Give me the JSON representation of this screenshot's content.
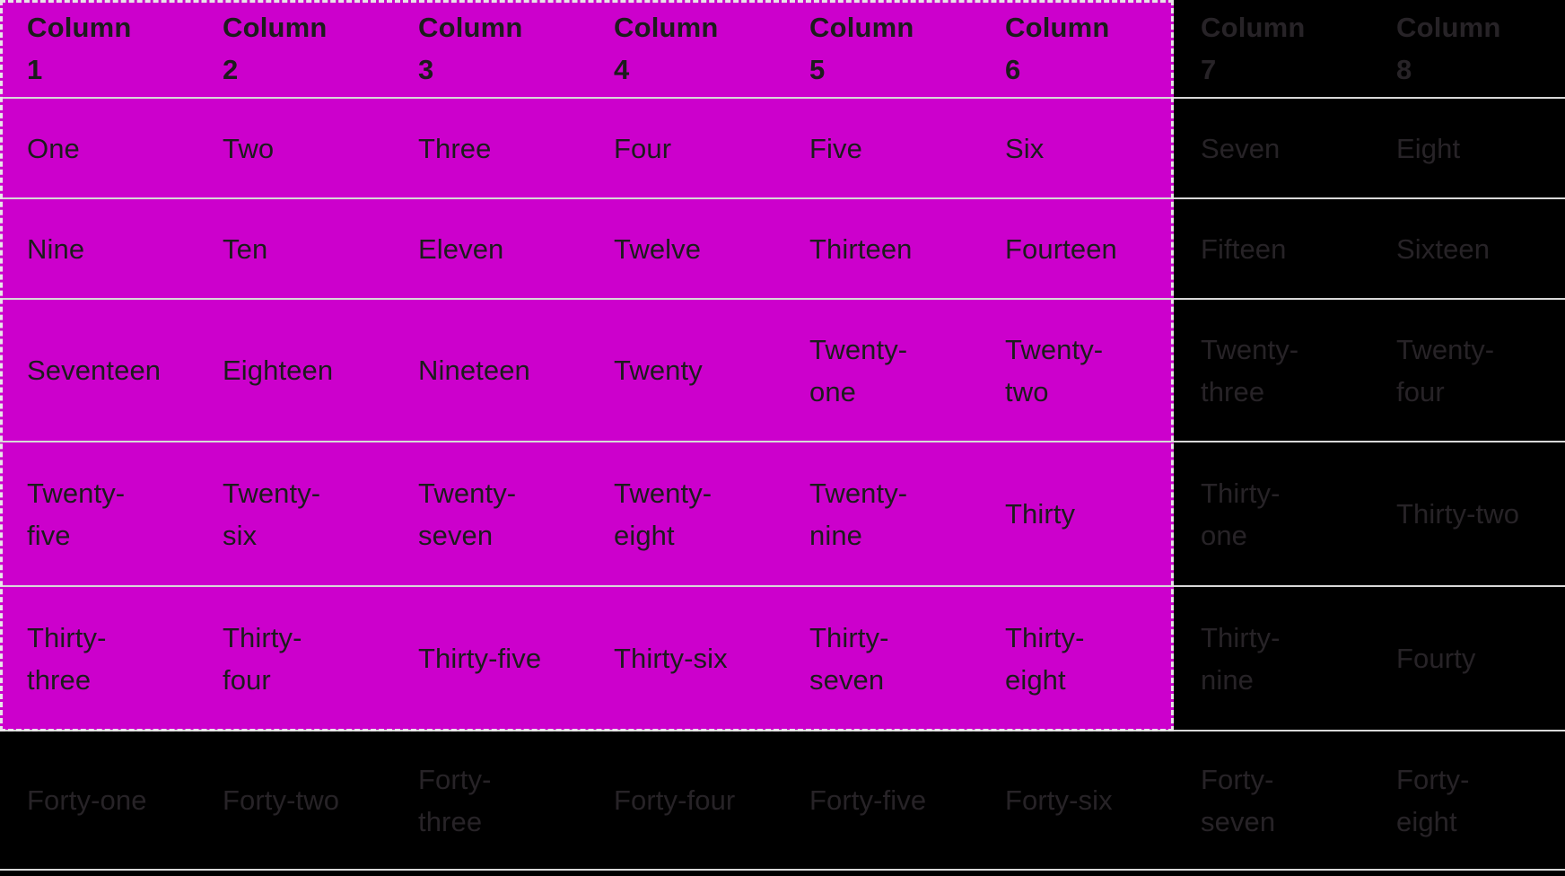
{
  "table": {
    "columns": [
      "Column 1",
      "Column 2",
      "Column 3",
      "Column 4",
      "Column 5",
      "Column 6",
      "Column 7",
      "Column 8"
    ],
    "rows": [
      [
        "One",
        "Two",
        "Three",
        "Four",
        "Five",
        "Six",
        "Seven",
        "Eight"
      ],
      [
        "Nine",
        "Ten",
        "Eleven",
        "Twelve",
        "Thirteen",
        "Fourteen",
        "Fifteen",
        "Sixteen"
      ],
      [
        "Seventeen",
        "Eighteen",
        "Nineteen",
        "Twenty",
        "Twenty-one",
        "Twenty-two",
        "Twenty-three",
        "Twenty-four"
      ],
      [
        "Twenty-five",
        "Twenty-six",
        "Twenty-seven",
        "Twenty-eight",
        "Twenty-nine",
        "Thirty",
        "Thirty-one",
        "Thirty-two"
      ],
      [
        "Thirty-three",
        "Thirty-four",
        "Thirty-five",
        "Thirty-six",
        "Thirty-seven",
        "Thirty-eight",
        "Thirty-nine",
        "Fourty"
      ],
      [
        "Forty-one",
        "Forty-two",
        "Forty-three",
        "Forty-four",
        "Forty-five",
        "Forty-six",
        "Forty-seven",
        "Forty-eight"
      ]
    ]
  },
  "selection": {
    "columns_span": 6,
    "rows_span_including_header": 6,
    "first_column": "Column 1",
    "last_column": "Column 6",
    "last_row_first_cell": "Thirty-three"
  },
  "colors": {
    "selection_fill": "#CC00CC",
    "background": "#000000",
    "separator": "#D8D8D8",
    "selection_dash": "#E8E4E8",
    "text_on_selection": "#1C1C1C",
    "text_on_background": "#272327"
  }
}
